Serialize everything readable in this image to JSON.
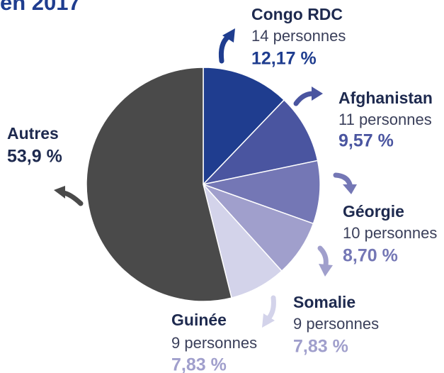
{
  "chart_data": {
    "type": "pie",
    "title": "en 2017",
    "categories": [
      "Congo RDC",
      "Afghanistan",
      "Géorgie",
      "Somalie",
      "Guinée",
      "Autres"
    ],
    "values": [
      12.17,
      9.57,
      8.7,
      7.83,
      7.83,
      53.9
    ],
    "value_labels": [
      "12,17 %",
      "9,57 %",
      "8,70 %",
      "7,83 %",
      "7,83 %",
      "53,9 %"
    ],
    "sublabels": [
      "14 personnes",
      "11 personnes",
      "10 personnes",
      "9 personnes",
      "9 personnes",
      null
    ],
    "colors": [
      "#1f3d8f",
      "#4a55a0",
      "#7477b5",
      "#a09fcc",
      "#d3d3ea",
      "#4a4a4a"
    ]
  }
}
